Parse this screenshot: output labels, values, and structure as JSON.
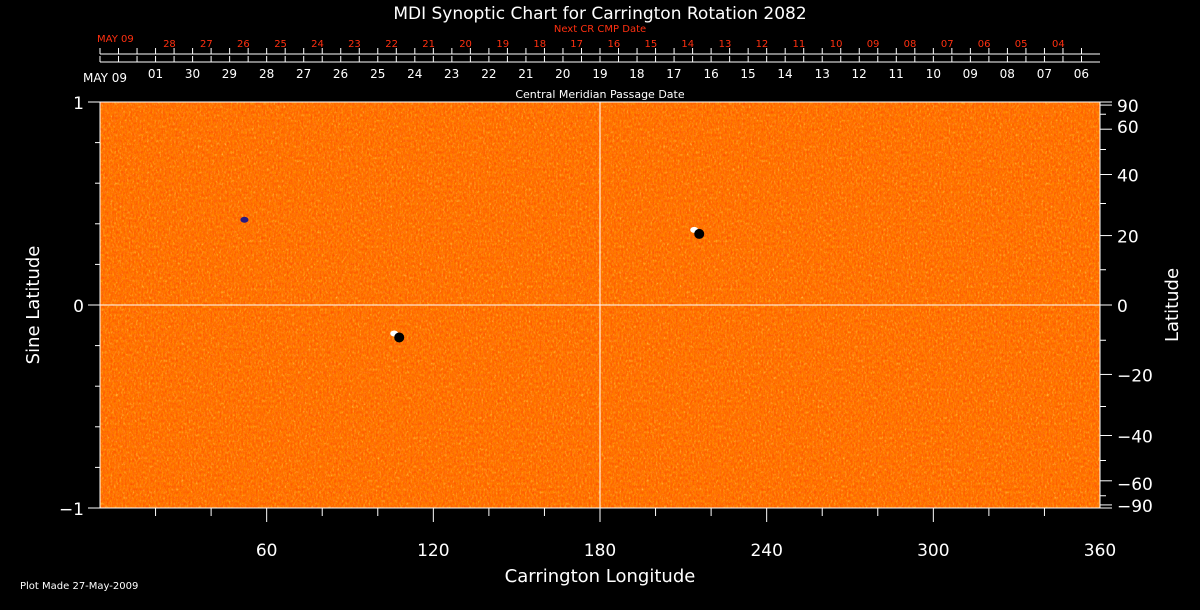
{
  "chart_data": {
    "type": "heatmap",
    "title": "MDI Synoptic Chart for Carrington Rotation 2082",
    "xlabel": "Carrington Longitude",
    "ylabel_left": "Sine Latitude",
    "ylabel_right": "Latitude",
    "xlim": [
      0,
      360
    ],
    "ylim": [
      -1,
      1
    ],
    "x_ticks": [
      60,
      120,
      180,
      240,
      300,
      360
    ],
    "y_ticks_left": [
      {
        "value": 1,
        "label": "1"
      },
      {
        "value": 0,
        "label": "0"
      },
      {
        "value": -1,
        "label": "−1"
      }
    ],
    "y_ticks_right": [
      {
        "deg": 90,
        "label": "90"
      },
      {
        "deg": 60,
        "label": "60"
      },
      {
        "deg": 40,
        "label": "40"
      },
      {
        "deg": 20,
        "label": "20"
      },
      {
        "deg": 0,
        "label": "0"
      },
      {
        "deg": -20,
        "label": "−20"
      },
      {
        "deg": -40,
        "label": "−40"
      },
      {
        "deg": -60,
        "label": "−60"
      },
      {
        "deg": -90,
        "label": "−90"
      }
    ],
    "cmp_axis": {
      "label": "Central Meridian Passage Date",
      "start_label": "MAY 09",
      "dates": [
        {
          "lon": 20,
          "label": "01"
        },
        {
          "lon": 33.3,
          "label": "30"
        },
        {
          "lon": 46.6,
          "label": "29"
        },
        {
          "lon": 60,
          "label": "28"
        },
        {
          "lon": 73.3,
          "label": "27"
        },
        {
          "lon": 86.6,
          "label": "26"
        },
        {
          "lon": 100,
          "label": "25"
        },
        {
          "lon": 113.3,
          "label": "24"
        },
        {
          "lon": 126.6,
          "label": "23"
        },
        {
          "lon": 140,
          "label": "22"
        },
        {
          "lon": 153.3,
          "label": "21"
        },
        {
          "lon": 166.6,
          "label": "20"
        },
        {
          "lon": 180,
          "label": "19"
        },
        {
          "lon": 193.3,
          "label": "18"
        },
        {
          "lon": 206.6,
          "label": "17"
        },
        {
          "lon": 220,
          "label": "16"
        },
        {
          "lon": 233.3,
          "label": "15"
        },
        {
          "lon": 246.6,
          "label": "14"
        },
        {
          "lon": 260,
          "label": "13"
        },
        {
          "lon": 273.3,
          "label": "12"
        },
        {
          "lon": 286.6,
          "label": "11"
        },
        {
          "lon": 300,
          "label": "10"
        },
        {
          "lon": 313.3,
          "label": "09"
        },
        {
          "lon": 326.6,
          "label": "08"
        },
        {
          "lon": 340,
          "label": "07"
        },
        {
          "lon": 353.3,
          "label": "06"
        }
      ]
    },
    "next_cr_axis": {
      "label": "Next CR CMP Date",
      "start_label": "MAY 09",
      "dates": [
        {
          "lon": 25,
          "label": "28"
        },
        {
          "lon": 38.3,
          "label": "27"
        },
        {
          "lon": 51.6,
          "label": "26"
        },
        {
          "lon": 65,
          "label": "25"
        },
        {
          "lon": 78.3,
          "label": "24"
        },
        {
          "lon": 91.6,
          "label": "23"
        },
        {
          "lon": 105,
          "label": "22"
        },
        {
          "lon": 118.3,
          "label": "21"
        },
        {
          "lon": 131.6,
          "label": "20"
        },
        {
          "lon": 145,
          "label": "19"
        },
        {
          "lon": 158.3,
          "label": "18"
        },
        {
          "lon": 171.6,
          "label": "17"
        },
        {
          "lon": 185,
          "label": "16"
        },
        {
          "lon": 198.3,
          "label": "15"
        },
        {
          "lon": 211.6,
          "label": "14"
        },
        {
          "lon": 225,
          "label": "13"
        },
        {
          "lon": 238.3,
          "label": "12"
        },
        {
          "lon": 251.6,
          "label": "11"
        },
        {
          "lon": 265,
          "label": "10"
        },
        {
          "lon": 278.3,
          "label": "09"
        },
        {
          "lon": 291.6,
          "label": "08"
        },
        {
          "lon": 305,
          "label": "07"
        },
        {
          "lon": 318.3,
          "label": "06"
        },
        {
          "lon": 331.6,
          "label": "05"
        },
        {
          "lon": 345,
          "label": "04"
        }
      ]
    },
    "reference_lines": {
      "longitude": 180,
      "sine_latitude": 0
    },
    "magnetic_features": [
      {
        "lon": 107,
        "sinlat": -0.15,
        "polarity": "mixed"
      },
      {
        "lon": 215,
        "sinlat": 0.36,
        "polarity": "mixed"
      },
      {
        "lon": 52,
        "sinlat": 0.42,
        "polarity": "negative"
      }
    ],
    "colors": {
      "background": "#000000",
      "field_base": "#ff4a00",
      "field_bright": "#ffc020",
      "field_negative": "#2a1a80",
      "axis": "#ffffff",
      "next_cr": "#ff3010"
    },
    "footer": "Plot Made 27-May-2009"
  }
}
